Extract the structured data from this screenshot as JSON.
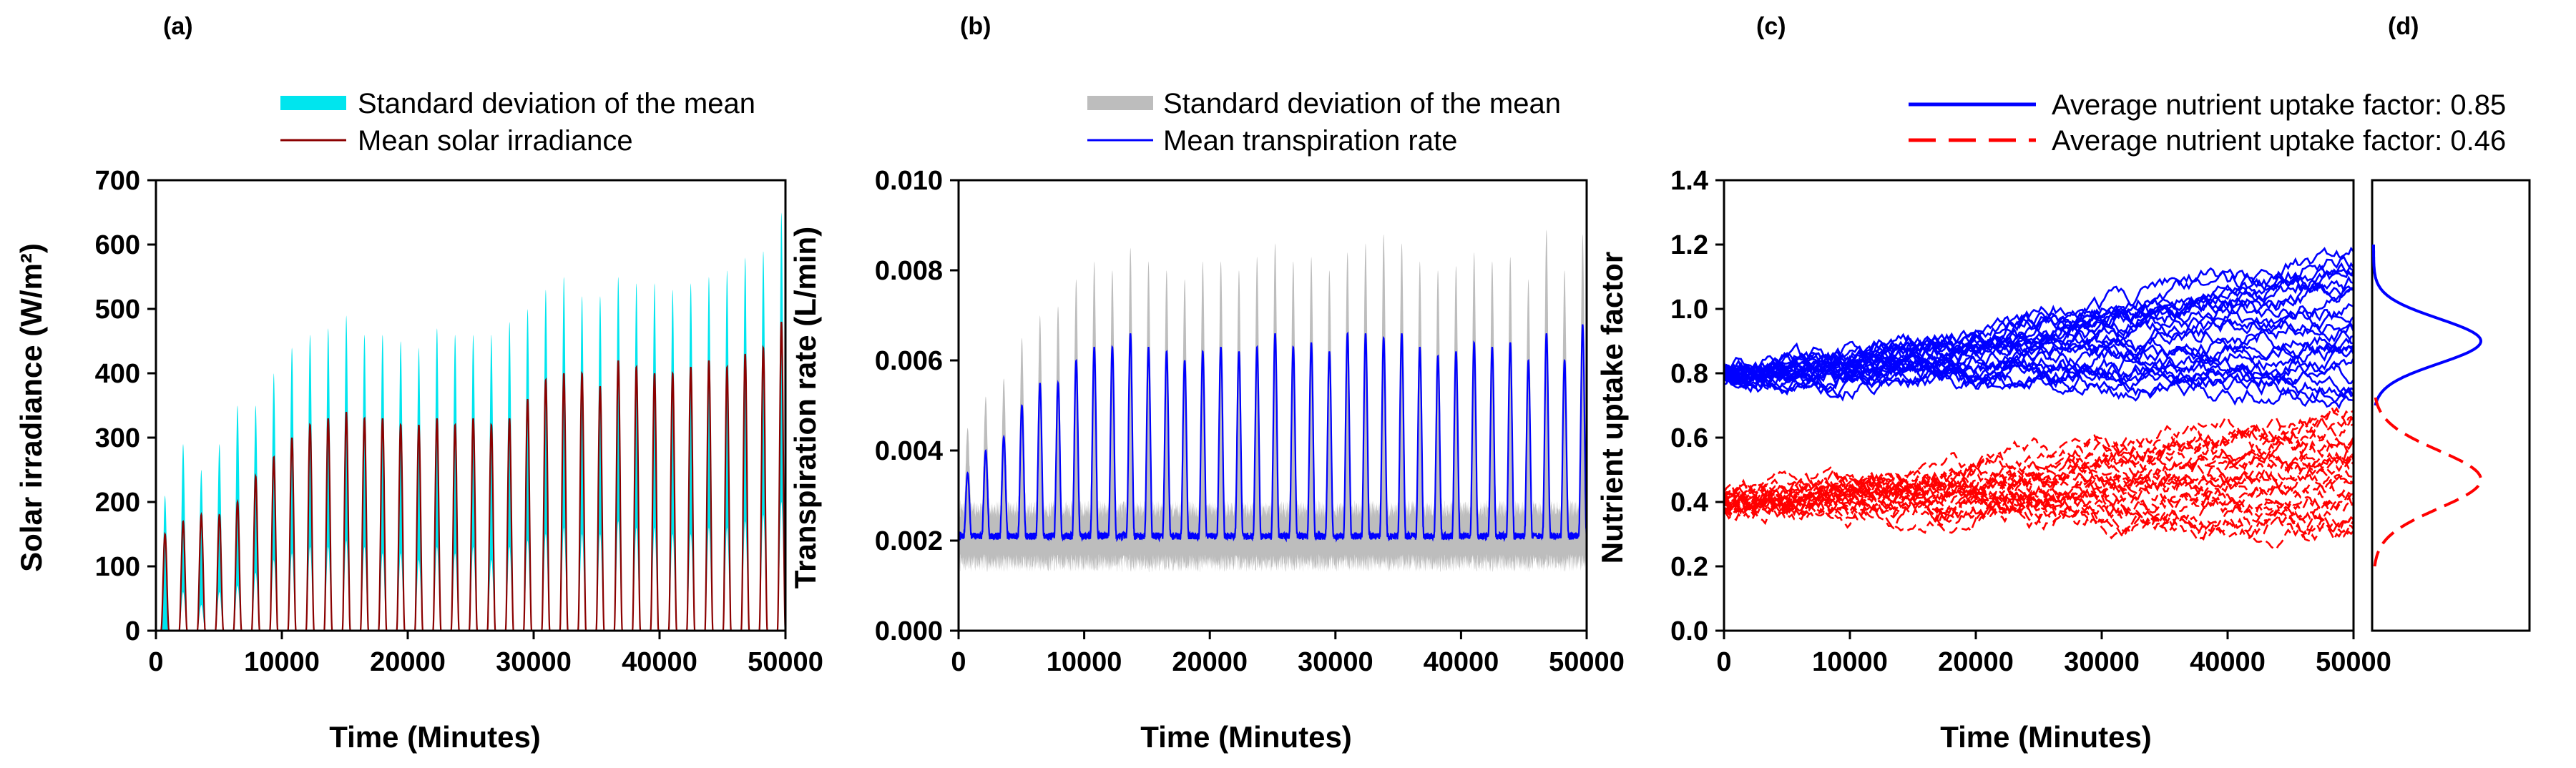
{
  "chart_data": [
    {
      "type": "line",
      "panel": "(a)",
      "xlabel": "Time (Minutes)",
      "ylabel": "Solar irradiance (W/m²)",
      "xlim": [
        0,
        50000
      ],
      "ylim": [
        0,
        700
      ],
      "x_ticks": [
        "0",
        "10000",
        "20000",
        "30000",
        "40000",
        "50000"
      ],
      "y_ticks": [
        "0",
        "100",
        "200",
        "300",
        "400",
        "500",
        "600",
        "700"
      ],
      "legend_position": "top",
      "period_minutes": 1440,
      "series": [
        {
          "name": "Standard deviation of the mean",
          "kind": "band",
          "color": "#00e5ee"
        },
        {
          "name": "Mean solar irradiance",
          "kind": "line",
          "color": "#8b0000"
        }
      ],
      "daily_peaks": {
        "x": [
          720,
          2160,
          3600,
          5040,
          6480,
          7920,
          9360,
          10800,
          12240,
          13680,
          15120,
          16560,
          18000,
          19440,
          20880,
          22320,
          23760,
          25200,
          26640,
          28080,
          29520,
          30960,
          32400,
          33840,
          35280,
          36720,
          38160,
          39600,
          41040,
          42480,
          43920,
          45360,
          46800,
          48240,
          49680
        ],
        "mean": [
          150,
          170,
          180,
          180,
          200,
          240,
          270,
          300,
          320,
          330,
          340,
          330,
          330,
          320,
          320,
          330,
          320,
          330,
          320,
          330,
          360,
          390,
          400,
          400,
          380,
          420,
          410,
          400,
          400,
          410,
          420,
          410,
          430,
          440,
          480
        ],
        "upper": [
          210,
          290,
          250,
          290,
          350,
          350,
          400,
          440,
          460,
          470,
          490,
          460,
          460,
          450,
          440,
          470,
          460,
          460,
          460,
          480,
          500,
          530,
          550,
          520,
          520,
          550,
          540,
          540,
          530,
          540,
          550,
          560,
          580,
          590,
          650
        ],
        "lower": [
          0,
          60,
          40,
          60,
          70,
          90,
          110,
          120,
          130,
          130,
          140,
          130,
          120,
          120,
          110,
          130,
          120,
          130,
          110,
          130,
          140,
          150,
          160,
          150,
          150,
          170,
          160,
          160,
          150,
          150,
          160,
          160,
          170,
          180,
          200
        ]
      }
    },
    {
      "type": "line",
      "panel": "(b)",
      "xlabel": "Time (Minutes)",
      "ylabel": "Transpiration rate (L/min)",
      "xlim": [
        0,
        50000
      ],
      "ylim": [
        0,
        0.01
      ],
      "x_ticks": [
        "0",
        "10000",
        "20000",
        "30000",
        "40000",
        "50000"
      ],
      "y_ticks": [
        "0.000",
        "0.002",
        "0.004",
        "0.006",
        "0.008",
        "0.010"
      ],
      "legend_position": "top",
      "period_minutes": 1440,
      "series": [
        {
          "name": "Standard deviation of the mean",
          "kind": "band",
          "color": "#bdbdbd"
        },
        {
          "name": "Mean transpiration rate",
          "kind": "line",
          "color": "#0000ff"
        }
      ],
      "baseline": {
        "mean": 0.0021,
        "upper": 0.0027,
        "lower": 0.0015
      },
      "daily_peaks": {
        "x": [
          720,
          2160,
          3600,
          5040,
          6480,
          7920,
          9360,
          10800,
          12240,
          13680,
          15120,
          16560,
          18000,
          19440,
          20880,
          22320,
          23760,
          25200,
          26640,
          28080,
          29520,
          30960,
          32400,
          33840,
          35280,
          36720,
          38160,
          39600,
          41040,
          42480,
          43920,
          45360,
          46800,
          48240,
          49680
        ],
        "mean": [
          0.0035,
          0.004,
          0.0043,
          0.005,
          0.0055,
          0.0055,
          0.006,
          0.0063,
          0.0063,
          0.0066,
          0.0063,
          0.0062,
          0.006,
          0.0062,
          0.0063,
          0.0062,
          0.0063,
          0.0066,
          0.0063,
          0.0064,
          0.0062,
          0.0066,
          0.0066,
          0.0065,
          0.0066,
          0.0063,
          0.0061,
          0.0062,
          0.0064,
          0.0063,
          0.0064,
          0.006,
          0.0066,
          0.006,
          0.0068
        ],
        "upper": [
          0.0045,
          0.0052,
          0.0056,
          0.0065,
          0.007,
          0.0072,
          0.0078,
          0.0082,
          0.008,
          0.0085,
          0.0082,
          0.008,
          0.0078,
          0.0082,
          0.0082,
          0.008,
          0.0083,
          0.0086,
          0.0082,
          0.0083,
          0.008,
          0.0084,
          0.0086,
          0.0088,
          0.0086,
          0.0082,
          0.008,
          0.0081,
          0.0084,
          0.0082,
          0.0083,
          0.0078,
          0.0089,
          0.008,
          0.0088
        ]
      }
    },
    {
      "type": "line",
      "panel": "(c)",
      "xlabel": "Time (Minutes)",
      "ylabel": "Nutrient uptake factor",
      "xlim": [
        0,
        50000
      ],
      "ylim": [
        0,
        1.4
      ],
      "x_ticks": [
        "0",
        "10000",
        "20000",
        "30000",
        "40000",
        "50000"
      ],
      "y_ticks": [
        "0.0",
        "0.2",
        "0.4",
        "0.6",
        "0.8",
        "1.0",
        "1.2",
        "1.4"
      ],
      "legend_position": "top",
      "series": [
        {
          "name": "Average nutrient uptake factor: 0.85",
          "color": "#0000ff",
          "dash": "solid",
          "start": 0.8,
          "end_range": [
            0.72,
            1.2
          ],
          "trajectories": 24
        },
        {
          "name": "Average nutrient uptake factor: 0.46",
          "color": "#ff0000",
          "dash": "dashed",
          "start": 0.4,
          "end_range": [
            0.28,
            0.7
          ],
          "trajectories": 24
        }
      ]
    },
    {
      "type": "line",
      "panel": "(d)",
      "ylim": [
        0,
        1.4
      ],
      "series": [
        {
          "name": "distribution-0.85",
          "color": "#0000ff",
          "dash": "solid",
          "mean": 0.9,
          "sd": 0.07,
          "range": [
            0.7,
            1.2
          ]
        },
        {
          "name": "distribution-0.46",
          "color": "#ff0000",
          "dash": "dashed",
          "mean": 0.47,
          "sd": 0.09,
          "range": [
            0.2,
            0.75
          ]
        }
      ]
    }
  ]
}
